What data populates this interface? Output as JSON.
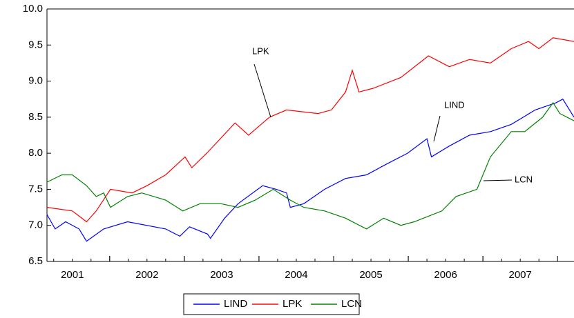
{
  "chart_data": {
    "type": "line",
    "xlim": [
      2001.16,
      2008.22
    ],
    "ylim": [
      6.5,
      10.0
    ],
    "yticks": [
      6.5,
      {
        "value": 7,
        "label": "7.0"
      },
      7.5,
      {
        "value": 8,
        "label": "8.0"
      },
      8.5,
      {
        "value": 9,
        "label": "9.0"
      },
      9.5,
      {
        "value": 10,
        "label": "10.0"
      }
    ],
    "xticks": [
      {
        "value": 2001.5,
        "label": "2001"
      },
      {
        "value": 2002.5,
        "label": "2002"
      },
      {
        "value": 2003.5,
        "label": "2003"
      },
      {
        "value": 2004.5,
        "label": "2004"
      },
      {
        "value": 2005.5,
        "label": "2005"
      },
      {
        "value": 2006.5,
        "label": "2006"
      },
      {
        "value": 2007.5,
        "label": "2007"
      }
    ],
    "legend": "bottom",
    "series": [
      {
        "name": "LIND",
        "color": "#0000ff",
        "x": [
          2001.16,
          2001.27,
          2001.41,
          2001.59,
          2001.69,
          2001.92,
          2002.24,
          2002.75,
          2002.94,
          2003.07,
          2003.31,
          2003.35,
          2003.54,
          2003.72,
          2004.05,
          2004.23,
          2004.37,
          2004.42,
          2004.6,
          2004.88,
          2005.16,
          2005.44,
          2005.71,
          2005.99,
          2006.25,
          2006.31,
          2006.55,
          2006.82,
          2007.1,
          2007.38,
          2007.7,
          2007.98,
          2008.07,
          2008.22
        ],
        "values": [
          7.15,
          6.95,
          7.05,
          6.95,
          6.78,
          6.95,
          7.05,
          6.95,
          6.85,
          6.98,
          6.88,
          6.82,
          7.1,
          7.3,
          7.55,
          7.5,
          7.45,
          7.25,
          7.3,
          7.5,
          7.65,
          7.7,
          7.85,
          8.0,
          8.2,
          7.95,
          8.1,
          8.25,
          8.3,
          8.4,
          8.6,
          8.7,
          8.75,
          8.5
        ]
      },
      {
        "name": "LPK",
        "color": "#ff0000",
        "x": [
          2001.16,
          2001.5,
          2001.69,
          2001.82,
          2002.01,
          2002.3,
          2002.5,
          2002.75,
          2003.01,
          2003.1,
          2003.3,
          2003.68,
          2003.86,
          2004.14,
          2004.37,
          2004.79,
          2004.97,
          2005.16,
          2005.25,
          2005.34,
          2005.53,
          2005.9,
          2006.27,
          2006.55,
          2006.82,
          2007.1,
          2007.38,
          2007.61,
          2007.75,
          2007.94,
          2008.22
        ],
        "values": [
          7.25,
          7.2,
          7.05,
          7.2,
          7.5,
          7.45,
          7.55,
          7.7,
          7.95,
          7.8,
          8.0,
          8.42,
          8.25,
          8.5,
          8.6,
          8.55,
          8.6,
          8.85,
          9.15,
          8.85,
          8.9,
          9.05,
          9.35,
          9.2,
          9.3,
          9.25,
          9.45,
          9.55,
          9.45,
          9.6,
          9.55
        ]
      },
      {
        "name": "LCN",
        "color": "#008000",
        "x": [
          2001.16,
          2001.36,
          2001.5,
          2001.69,
          2001.82,
          2001.92,
          2002.01,
          2002.24,
          2002.43,
          2002.75,
          2002.98,
          2003.21,
          2003.49,
          2003.72,
          2003.95,
          2004.19,
          2004.42,
          2004.6,
          2004.88,
          2005.16,
          2005.44,
          2005.67,
          2005.9,
          2006.08,
          2006.45,
          2006.64,
          2006.92,
          2007.1,
          2007.38,
          2007.56,
          2007.8,
          2007.94,
          2008.03,
          2008.22
        ],
        "values": [
          7.6,
          7.7,
          7.7,
          7.55,
          7.4,
          7.45,
          7.25,
          7.4,
          7.45,
          7.35,
          7.2,
          7.3,
          7.3,
          7.25,
          7.35,
          7.5,
          7.35,
          7.25,
          7.2,
          7.1,
          6.95,
          7.1,
          7.0,
          7.05,
          7.2,
          7.4,
          7.5,
          7.95,
          8.3,
          8.3,
          8.5,
          8.7,
          8.55,
          8.45
        ]
      }
    ],
    "annotations": [
      "LPK",
      "LIND",
      "LCN"
    ]
  }
}
